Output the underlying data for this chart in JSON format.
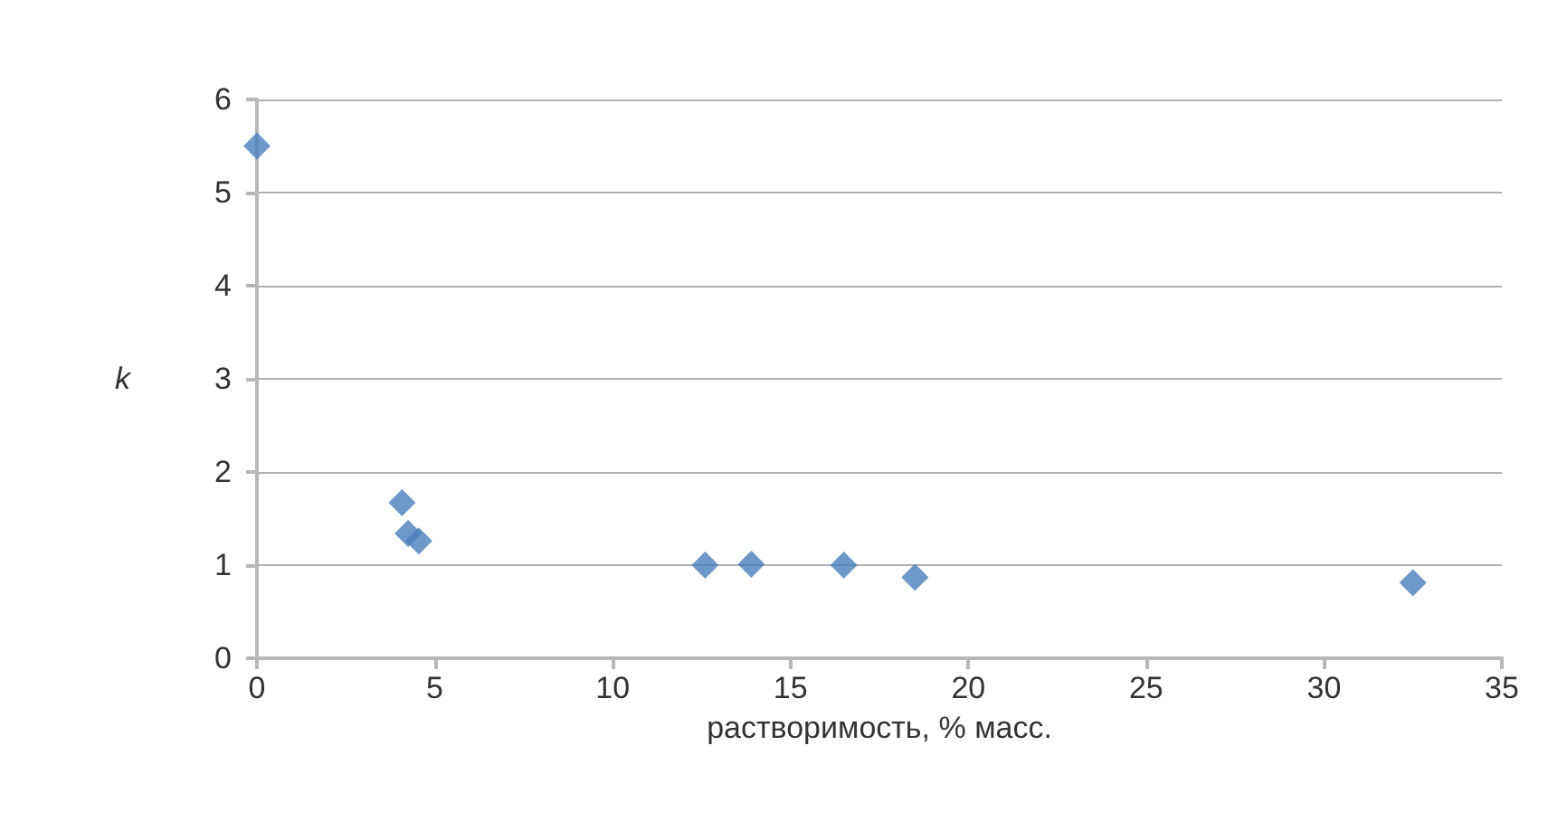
{
  "chart_data": {
    "type": "scatter",
    "xlabel": "растворимость, % масс.",
    "ylabel": "k",
    "x": [
      0,
      4.08,
      4.25,
      4.55,
      12.6,
      13.9,
      16.5,
      18.5,
      32.5
    ],
    "values": [
      5.5,
      1.67,
      1.34,
      1.26,
      1.0,
      1.01,
      1.0,
      0.87,
      0.81
    ],
    "color": "#4a7ebb",
    "marker": "diamond",
    "xlim": [
      0,
      35
    ],
    "xticks": [
      0,
      5,
      10,
      15,
      20,
      25,
      30,
      35
    ],
    "ylim": [
      0,
      6
    ],
    "yticks": [
      0,
      1,
      2,
      3,
      4,
      5,
      6
    ],
    "grid": "y"
  }
}
